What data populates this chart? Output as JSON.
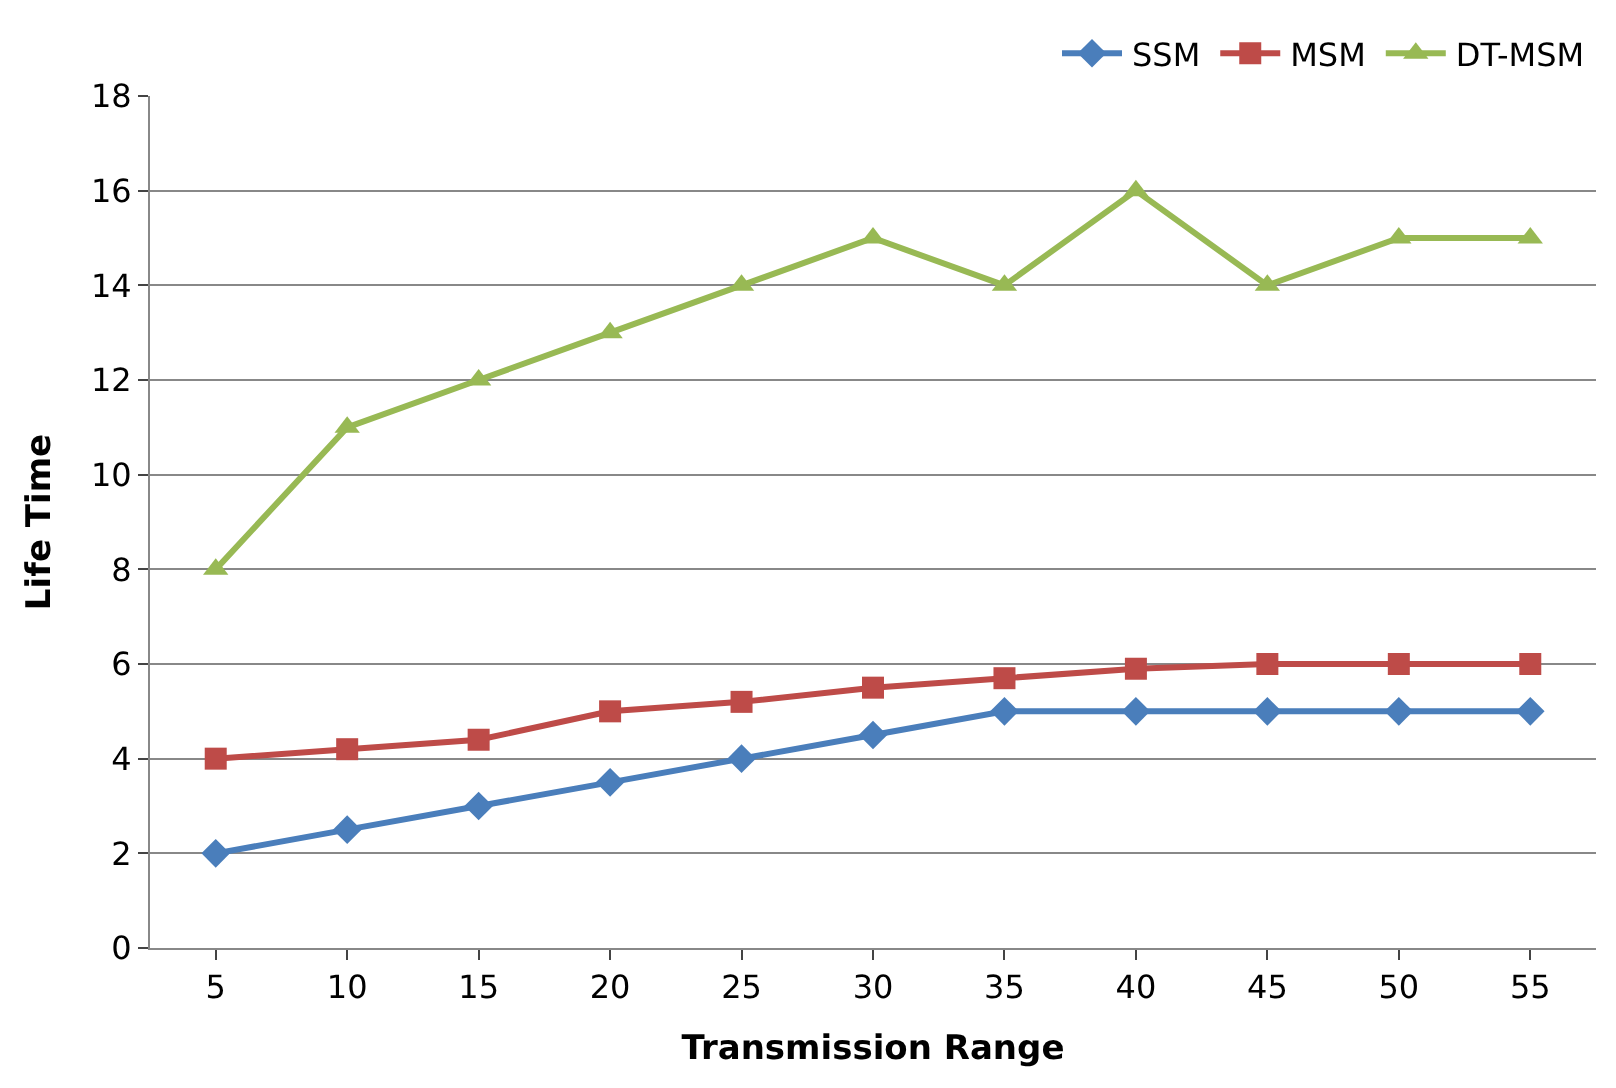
{
  "chart_data": {
    "type": "line",
    "xlabel": "Transmission Range",
    "ylabel": "Life Time",
    "categories": [
      "5",
      "10",
      "15",
      "20",
      "25",
      "30",
      "35",
      "40",
      "45",
      "50",
      "55"
    ],
    "series": [
      {
        "name": "SSM",
        "color": "#4a7ebb",
        "marker": "diamond",
        "values": [
          2,
          2.5,
          3,
          3.5,
          4,
          4.5,
          5,
          5,
          5,
          5,
          5
        ]
      },
      {
        "name": "MSM",
        "color": "#be4b48",
        "marker": "square",
        "values": [
          4,
          4.2,
          4.4,
          5,
          5.2,
          5.5,
          5.7,
          5.9,
          6,
          6,
          6
        ]
      },
      {
        "name": "DT-MSM",
        "color": "#98b954",
        "marker": "triangle",
        "values": [
          8,
          11,
          12,
          13,
          14,
          15,
          14,
          16,
          14,
          15,
          15
        ]
      }
    ],
    "ylim": [
      0,
      18
    ],
    "yticks": [
      0,
      2,
      4,
      6,
      8,
      10,
      12,
      14,
      16,
      18
    ],
    "grid": "y",
    "legend": "top right",
    "line_style": "solid"
  }
}
